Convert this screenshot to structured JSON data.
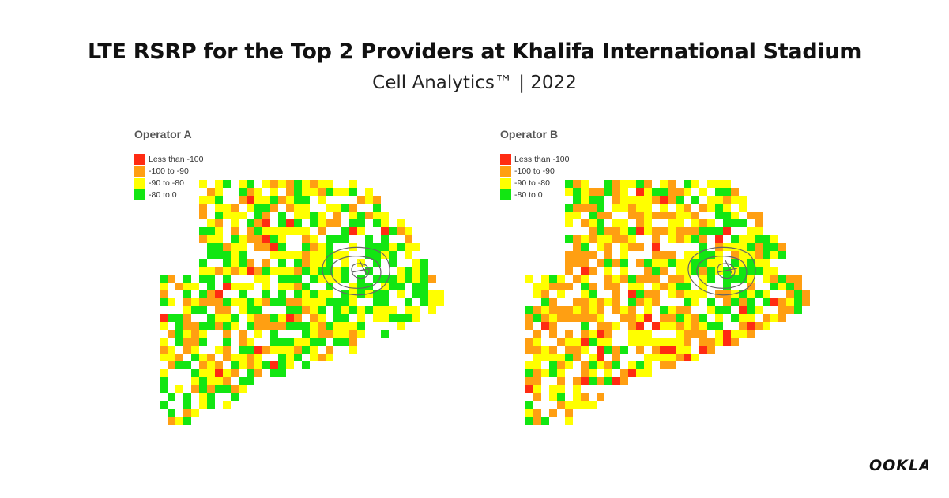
{
  "title": "LTE RSRP for the Top 2 Providers at Khalifa International Stadium",
  "subtitle": "Cell Analytics™ | 2022",
  "legend": [
    {
      "label": "Less than -100",
      "color": "#ff2b12"
    },
    {
      "label": "-100 to -90",
      "color": "#ff9f12"
    },
    {
      "label": "-90 to -80",
      "color": "#ffff00"
    },
    {
      "label": "-80 to 0",
      "color": "#12e612"
    }
  ],
  "panels": [
    {
      "label": "Operator A"
    },
    {
      "label": "Operator B"
    }
  ],
  "logo": "OOKLA"
}
